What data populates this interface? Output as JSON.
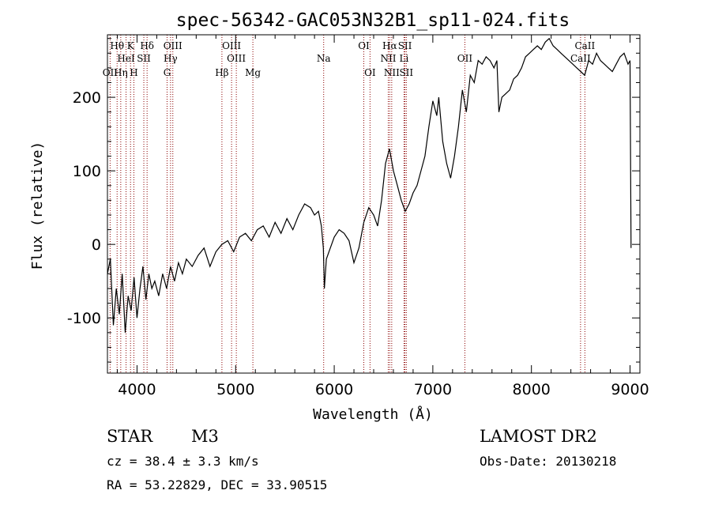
{
  "chart_data": {
    "type": "line",
    "title": "spec-56342-GAC053N32B1_sp11-024.fits",
    "xlabel": "Wavelength (Å)",
    "ylabel": "Flux (relative)",
    "xlim": [
      3700,
      9100
    ],
    "ylim": [
      -175,
      285
    ],
    "x_ticks": [
      4000,
      5000,
      6000,
      7000,
      8000,
      9000
    ],
    "y_ticks": [
      -100,
      0,
      100,
      200
    ],
    "grid": false,
    "series": [
      {
        "x": [
          3700,
          3730,
          3760,
          3790,
          3820,
          3850,
          3880,
          3910,
          3940,
          3970,
          4000,
          4030,
          4060,
          4090,
          4120,
          4150,
          4180,
          4220,
          4260,
          4300,
          4340,
          4380,
          4420,
          4460,
          4500,
          4560,
          4620,
          4680,
          4740,
          4800,
          4860,
          4920,
          4980,
          5040,
          5100,
          5160,
          5220,
          5280,
          5340,
          5400,
          5460,
          5520,
          5580,
          5640,
          5700,
          5760,
          5800,
          5840,
          5870,
          5890,
          5900,
          5920,
          5960,
          6000,
          6050,
          6100,
          6150,
          6200,
          6250,
          6300,
          6350,
          6400,
          6440,
          6480,
          6520,
          6560,
          6600,
          6640,
          6680,
          6720,
          6760,
          6800,
          6840,
          6880,
          6920,
          6960,
          7000,
          7040,
          7060,
          7100,
          7140,
          7180,
          7220,
          7260,
          7300,
          7340,
          7380,
          7420,
          7460,
          7500,
          7540,
          7580,
          7620,
          7650,
          7670,
          7700,
          7740,
          7780,
          7820,
          7860,
          7900,
          7940,
          7980,
          8020,
          8060,
          8100,
          8140,
          8180,
          8220,
          8260,
          8300,
          8340,
          8380,
          8420,
          8460,
          8500,
          8540,
          8580,
          8620,
          8660,
          8700,
          8740,
          8780,
          8820,
          8860,
          8900,
          8940,
          8980,
          9000,
          9010
        ],
        "values": [
          -40,
          -20,
          -110,
          -60,
          -95,
          -40,
          -120,
          -70,
          -90,
          -45,
          -100,
          -60,
          -30,
          -75,
          -40,
          -60,
          -50,
          -70,
          -40,
          -60,
          -30,
          -50,
          -25,
          -40,
          -20,
          -30,
          -15,
          -5,
          -30,
          -10,
          0,
          5,
          -10,
          10,
          15,
          5,
          20,
          25,
          10,
          30,
          15,
          35,
          20,
          40,
          55,
          50,
          40,
          45,
          25,
          -5,
          -60,
          -20,
          -5,
          10,
          20,
          15,
          5,
          -25,
          -5,
          30,
          50,
          40,
          25,
          60,
          110,
          130,
          100,
          80,
          60,
          45,
          55,
          70,
          80,
          100,
          120,
          160,
          195,
          175,
          200,
          140,
          110,
          90,
          120,
          160,
          210,
          180,
          230,
          220,
          250,
          245,
          255,
          250,
          240,
          250,
          180,
          200,
          205,
          210,
          225,
          230,
          240,
          255,
          260,
          265,
          270,
          265,
          275,
          280,
          270,
          265,
          260,
          255,
          250,
          245,
          240,
          235,
          230,
          250,
          245,
          260,
          250,
          245,
          240,
          235,
          245,
          255,
          260,
          245,
          250,
          -5
        ]
      }
    ],
    "emission_lines": [
      {
        "label": "Hθ",
        "wave": 3798,
        "row": 1
      },
      {
        "label": "K",
        "wave": 3934,
        "row": 1
      },
      {
        "label": "Hδ",
        "wave": 4102,
        "row": 1
      },
      {
        "label": "OIII",
        "wave": 4363,
        "row": 1
      },
      {
        "label": "OIII",
        "wave": 4959,
        "row": 1
      },
      {
        "label": "OI",
        "wave": 6300,
        "row": 1
      },
      {
        "label": "Hα",
        "wave": 6563,
        "row": 1
      },
      {
        "label": "SII",
        "wave": 6717,
        "row": 1
      },
      {
        "label": "CaII",
        "wave": 8542,
        "row": 1
      },
      {
        "label": "HeI",
        "wave": 3889,
        "row": 2
      },
      {
        "label": "SII",
        "wave": 4069,
        "row": 2
      },
      {
        "label": "Hγ",
        "wave": 4340,
        "row": 2
      },
      {
        "label": "OIII",
        "wave": 5007,
        "row": 2
      },
      {
        "label": "Na",
        "wave": 5893,
        "row": 2
      },
      {
        "label": "NII",
        "wave": 6548,
        "row": 2
      },
      {
        "label": "Li",
        "wave": 6708,
        "row": 2
      },
      {
        "label": "OII",
        "wave": 7325,
        "row": 2
      },
      {
        "label": "CaII",
        "wave": 8498,
        "row": 2
      },
      {
        "label": "OII",
        "wave": 3727,
        "row": 3
      },
      {
        "label": "Hη",
        "wave": 3835,
        "row": 3
      },
      {
        "label": "H",
        "wave": 3968,
        "row": 3
      },
      {
        "label": "G",
        "wave": 4305,
        "row": 3
      },
      {
        "label": "Hβ",
        "wave": 4861,
        "row": 3
      },
      {
        "label": "Mg",
        "wave": 5175,
        "row": 3
      },
      {
        "label": "OI",
        "wave": 6363,
        "row": 3
      },
      {
        "label": "NII",
        "wave": 6583,
        "row": 3
      },
      {
        "label": "SII",
        "wave": 6731,
        "row": 3
      }
    ]
  },
  "info": {
    "object_type": "STAR",
    "subclass": "M3",
    "survey": "LAMOST DR2",
    "cz": "cz = 38.4 ± 3.3 km/s",
    "obs_date": "Obs-Date: 20130218",
    "coords": "RA =  53.22829, DEC =  33.90515"
  },
  "colors": {
    "line_marker": "#8b0000",
    "spectrum": "#000000"
  }
}
